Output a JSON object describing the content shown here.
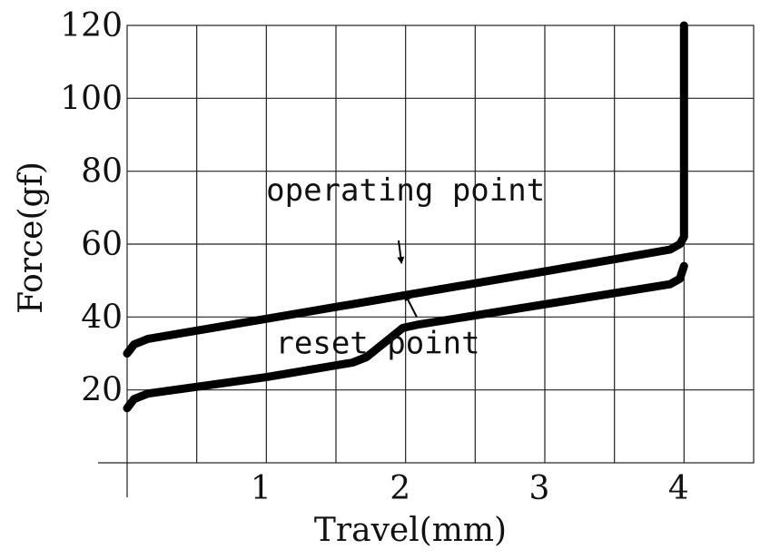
{
  "chart_data": {
    "type": "line",
    "xlabel": "Travel(mm)",
    "ylabel": "Force(gf)",
    "xlim": [
      0,
      4.5
    ],
    "ylim": [
      0,
      120
    ],
    "x_ticks": [
      1,
      2,
      3,
      4
    ],
    "x_tick_labels": [
      "1",
      "2",
      "3",
      "4"
    ],
    "y_ticks": [
      20,
      40,
      60,
      80,
      100,
      120
    ],
    "y_tick_labels": [
      "20",
      "40",
      "60",
      "80",
      "100",
      "120"
    ],
    "grid": true,
    "series": [
      {
        "x": [
          0.0,
          0.05,
          0.15,
          1.0,
          2.0,
          3.0,
          3.9,
          3.97,
          4.0,
          4.0
        ],
        "y": [
          30,
          32.5,
          34,
          39.5,
          46,
          52.5,
          58.5,
          60,
          62,
          120
        ]
      },
      {
        "x": [
          0.0,
          0.05,
          0.15,
          1.0,
          1.62,
          1.72,
          1.98,
          2.1,
          3.0,
          3.9,
          3.97,
          4.0
        ],
        "y": [
          15,
          17.5,
          19,
          23.5,
          27.5,
          29,
          37,
          38,
          43.5,
          49,
          50.5,
          54
        ]
      }
    ],
    "annotations": [
      {
        "text": "operating point",
        "x": 2.0,
        "y": 72
      },
      {
        "text": "reset point",
        "x": 1.8,
        "y": 30
      }
    ]
  }
}
